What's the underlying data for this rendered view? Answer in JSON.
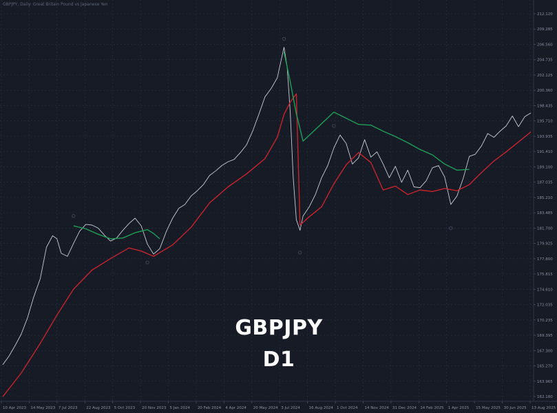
{
  "header": {
    "info": "GBPJPY, Daily: Great Britain Pound vs Japanese Yen"
  },
  "watermark": {
    "symbol": "GBPJPY",
    "timeframe": "D1"
  },
  "colors": {
    "background": "#161b26",
    "grid": "#2b3244",
    "price": "#c9ccd3",
    "ma_fast": "#1fa055",
    "ma_slow": "#c8242c",
    "fractal": "#3d4456"
  },
  "chart_data": {
    "type": "line",
    "title": "GBPJPY, Daily: Great Britain Pound vs Japanese Yen",
    "xlabel": "",
    "ylabel": "",
    "ylim": [
      160.6,
      213.2
    ],
    "grid": true,
    "x_ticks": [
      "10 Apr 2023",
      "14 May 2023",
      "7 Jul 2023",
      "22 Aug 2023",
      "5 Oct 2023",
      "20 Nov 2023",
      "5 Jan 2024",
      "20 Feb 2024",
      "4 Apr 2024",
      "20 May 2024",
      "3 Jul 2024",
      "16 Aug 2024",
      "1 Oct 2024",
      "14 Nov 2024",
      "31 Dec 2024",
      "14 Feb 2025",
      "1 Apr 2025",
      "15 May 2025",
      "30 Jun 2025",
      "13 Aug 2025"
    ],
    "y_ticks": [
      "212.120",
      "209.285",
      "206.560",
      "204.735",
      "202.125",
      "200.360",
      "198.435",
      "195.710",
      "193.935",
      "191.410",
      "189.100",
      "187.035",
      "185.210",
      "183.485",
      "181.700",
      "179.925",
      "177.800",
      "175.815",
      "174.610",
      "172.035",
      "170.235",
      "169.395",
      "167.300",
      "165.270",
      "163.965",
      "162.180"
    ],
    "series": [
      {
        "name": "",
        "color": "#c9ccd3",
        "x": [
          "2023-04-10",
          "2023-04-20",
          "2023-04-30",
          "2023-05-10",
          "2023-05-20",
          "2023-05-30",
          "2023-06-10",
          "2023-06-20",
          "2023-06-30",
          "2023-07-07",
          "2023-07-14",
          "2023-07-24",
          "2023-08-03",
          "2023-08-13",
          "2023-08-23",
          "2023-09-02",
          "2023-09-12",
          "2023-09-22",
          "2023-10-02",
          "2023-10-12",
          "2023-10-22",
          "2023-11-01",
          "2023-11-11",
          "2023-11-21",
          "2023-12-01",
          "2023-12-11",
          "2023-12-21",
          "2024-01-01",
          "2024-01-11",
          "2024-01-21",
          "2024-01-31",
          "2024-02-10",
          "2024-02-20",
          "2024-03-01",
          "2024-03-11",
          "2024-03-21",
          "2024-03-31",
          "2024-04-10",
          "2024-04-20",
          "2024-04-30",
          "2024-05-10",
          "2024-05-20",
          "2024-05-30",
          "2024-06-09",
          "2024-06-19",
          "2024-06-29",
          "2024-07-05",
          "2024-07-10",
          "2024-07-15",
          "2024-07-20",
          "2024-07-25",
          "2024-07-30",
          "2024-08-05",
          "2024-08-10",
          "2024-08-20",
          "2024-08-30",
          "2024-09-09",
          "2024-09-19",
          "2024-09-29",
          "2024-10-09",
          "2024-10-19",
          "2024-10-29",
          "2024-11-08",
          "2024-11-18",
          "2024-11-28",
          "2024-12-08",
          "2024-12-18",
          "2024-12-28",
          "2025-01-07",
          "2025-01-17",
          "2025-01-27",
          "2025-02-06",
          "2025-02-16",
          "2025-02-26",
          "2025-03-08",
          "2025-03-18",
          "2025-03-28",
          "2025-04-07",
          "2025-04-17",
          "2025-04-27",
          "2025-05-07",
          "2025-05-17",
          "2025-05-27",
          "2025-06-06",
          "2025-06-16",
          "2025-06-26",
          "2025-07-06",
          "2025-07-16",
          "2025-07-26",
          "2025-08-05",
          "2025-08-15"
        ],
        "values": [
          165.4,
          166.5,
          167.9,
          169.4,
          171.5,
          174.2,
          176.7,
          180.8,
          182.3,
          181.9,
          180.0,
          179.6,
          181.3,
          182.9,
          183.8,
          183.7,
          183.3,
          182.4,
          181.6,
          182.0,
          183.0,
          183.9,
          184.6,
          183.6,
          181.2,
          179.9,
          180.6,
          182.9,
          184.6,
          185.9,
          186.4,
          187.5,
          188.2,
          189.0,
          190.2,
          190.8,
          191.5,
          192.0,
          192.3,
          193.2,
          194.2,
          196.0,
          198.2,
          200.5,
          201.6,
          203.0,
          205.2,
          207.0,
          204.5,
          198.6,
          189.9,
          184.4,
          183.0,
          184.9,
          186.1,
          187.7,
          189.9,
          191.5,
          193.8,
          195.5,
          194.4,
          191.7,
          192.5,
          194.9,
          192.6,
          193.3,
          191.7,
          189.9,
          191.4,
          189.3,
          190.9,
          188.7,
          188.6,
          189.5,
          191.2,
          191.5,
          190.0,
          186.4,
          187.5,
          189.8,
          192.7,
          193.0,
          194.1,
          195.7,
          195.2,
          196.0,
          196.7,
          198.0,
          196.6,
          197.9,
          198.4
        ]
      },
      {
        "name": "",
        "color": "#c8242c",
        "x": [
          "2023-04-10",
          "2023-05-10",
          "2023-06-10",
          "2023-07-07",
          "2023-08-03",
          "2023-09-02",
          "2023-10-02",
          "2023-11-01",
          "2023-11-21",
          "2023-12-11",
          "2024-01-11",
          "2024-02-10",
          "2024-03-11",
          "2024-04-10",
          "2024-05-10",
          "2024-06-09",
          "2024-06-29",
          "2024-07-10",
          "2024-07-20",
          "2024-07-30",
          "2024-08-05",
          "2024-08-20",
          "2024-09-09",
          "2024-09-29",
          "2024-10-19",
          "2024-11-08",
          "2024-11-28",
          "2024-12-18",
          "2025-01-07",
          "2025-01-27",
          "2025-02-16",
          "2025-03-08",
          "2025-03-28",
          "2025-04-17",
          "2025-05-07",
          "2025-05-27",
          "2025-06-16",
          "2025-07-06",
          "2025-07-26",
          "2025-08-15"
        ],
        "values": [
          161.2,
          164.3,
          168.2,
          171.9,
          175.3,
          177.8,
          179.3,
          180.7,
          180.3,
          179.6,
          181.1,
          183.4,
          186.6,
          188.7,
          190.4,
          192.4,
          195.2,
          198.2,
          199.8,
          200.9,
          183.7,
          184.8,
          186.1,
          189.1,
          191.6,
          193.2,
          191.9,
          188.3,
          188.8,
          187.7,
          188.3,
          188.1,
          188.5,
          188.2,
          189.0,
          190.6,
          192.1,
          193.3,
          194.6,
          195.9
        ]
      },
      {
        "name": "",
        "color": "#1fa055",
        "x": [
          "2023-08-03",
          "2023-08-23",
          "2023-09-12",
          "2023-10-02",
          "2023-10-22",
          "2023-11-11",
          "2023-12-01",
          "2023-12-11",
          "2023-12-21",
          "2024-07-10",
          "2024-07-20",
          "2024-07-30",
          "2024-08-10",
          "2024-09-29",
          "2024-10-19",
          "2024-11-08",
          "2024-11-28",
          "2024-12-18",
          "2025-01-07",
          "2025-01-27",
          "2025-02-16",
          "2025-03-08",
          "2025-03-28",
          "2025-04-17",
          "2025-05-07"
        ],
        "values": [
          183.6,
          183.2,
          182.5,
          181.9,
          182.0,
          182.7,
          183.1,
          182.6,
          181.9,
          206.4,
          202.5,
          198.3,
          194.7,
          198.5,
          197.7,
          196.9,
          196.8,
          196.0,
          195.3,
          194.5,
          193.6,
          192.9,
          191.7,
          190.9,
          191.0
        ]
      }
    ],
    "markers": [
      {
        "x": "2023-08-03",
        "y": 184.9
      },
      {
        "x": "2023-12-01",
        "y": 178.8
      },
      {
        "x": "2024-07-10",
        "y": 208.1
      },
      {
        "x": "2024-08-05",
        "y": 180.1
      },
      {
        "x": "2024-09-29",
        "y": 196.7
      },
      {
        "x": "2025-04-07",
        "y": 183.3
      }
    ]
  }
}
